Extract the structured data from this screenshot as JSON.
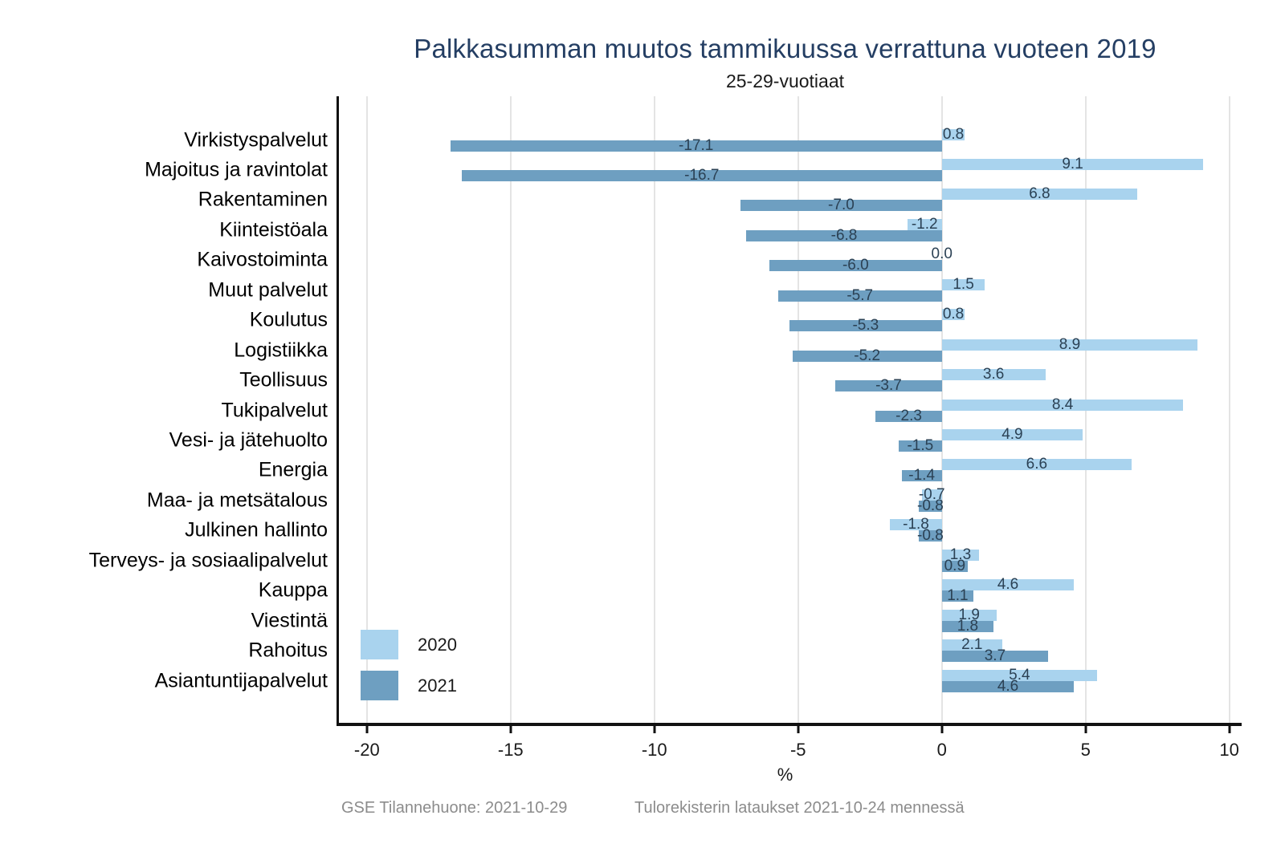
{
  "title": "Palkkasumman muutos tammikuussa verrattuna vuoteen 2019",
  "subtitle": "25-29-vuotiaat",
  "footer": {
    "left": "GSE Tilannehuone: 2021-10-29",
    "right": "Tulorekisterin lataukset 2021-10-24 mennessä"
  },
  "chart_data": {
    "type": "bar",
    "orientation": "horizontal",
    "title": "Palkkasumman muutos tammikuussa verrattuna vuoteen 2019",
    "subtitle": "25-29-vuotiaat",
    "xlabel": "%",
    "xticks": [
      -20,
      -15,
      -10,
      -5,
      0,
      5,
      10
    ],
    "xlim": [
      -21.0,
      10.4
    ],
    "grid": true,
    "legend_position": "bottom-left-inside",
    "value_labels": "one-decimal-centered-on-bar",
    "categories": [
      "Virkistyspalvelut",
      "Majoitus ja ravintolat",
      "Rakentaminen",
      "Kiinteistöala",
      "Kaivostoiminta",
      "Muut palvelut",
      "Koulutus",
      "Logistiikka",
      "Teollisuus",
      "Tukipalvelut",
      "Vesi- ja jätehuolto",
      "Energia",
      "Maa- ja metsätalous",
      "Julkinen hallinto",
      "Terveys- ja sosiaalipalvelut",
      "Kauppa",
      "Viestintä",
      "Rahoitus",
      "Asiantuntijapalvelut"
    ],
    "series": [
      {
        "name": "2020",
        "color": "#A9D3EE",
        "values": [
          0.8,
          9.1,
          6.8,
          -1.2,
          0.0,
          1.5,
          0.8,
          8.9,
          3.6,
          8.4,
          4.9,
          6.6,
          -0.7,
          -1.8,
          1.3,
          4.6,
          1.9,
          2.1,
          5.4
        ]
      },
      {
        "name": "2021",
        "color": "#6E9FC1",
        "values": [
          -17.1,
          -16.7,
          -7.0,
          -6.8,
          -6.0,
          -5.7,
          -5.3,
          -5.2,
          -3.7,
          -2.3,
          -1.5,
          -1.4,
          -0.8,
          -0.8,
          0.9,
          1.1,
          1.8,
          3.7,
          4.6
        ]
      }
    ]
  }
}
